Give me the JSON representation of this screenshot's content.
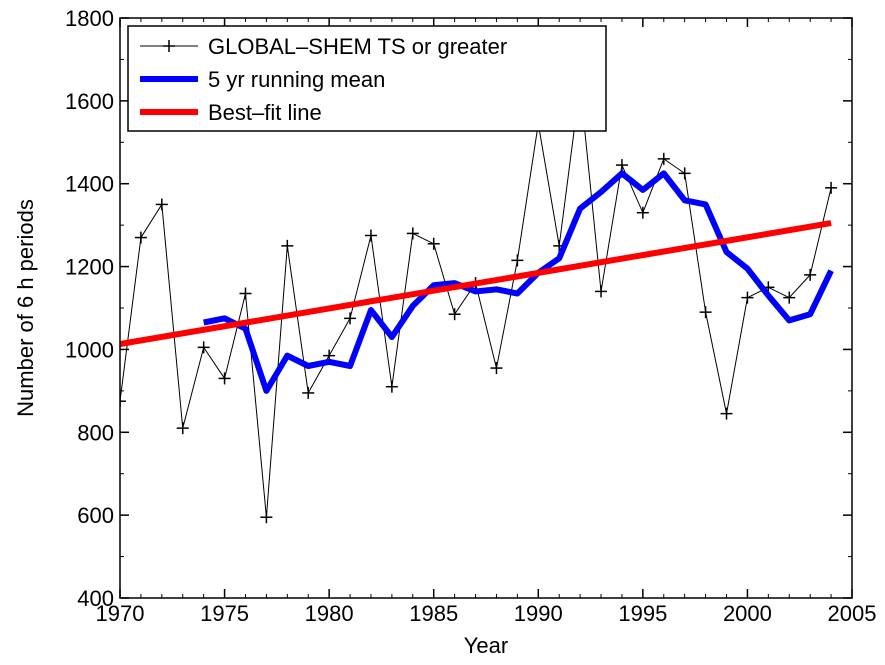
{
  "chart_data": {
    "type": "line",
    "title": "",
    "xlabel": "Year",
    "ylabel": "Number of 6 h periods",
    "xlim": [
      1970,
      2005
    ],
    "ylim": [
      400,
      1800
    ],
    "xticks": [
      1970,
      1975,
      1980,
      1985,
      1990,
      1995,
      2000,
      2005
    ],
    "yticks": [
      400,
      600,
      800,
      1000,
      1200,
      1400,
      1600,
      1800
    ],
    "grid": false,
    "legend_position": "top-left",
    "series": [
      {
        "name": "GLOBAL–SHEM TS or greater",
        "style": "thin-line-plus-markers",
        "color": "#000000",
        "x": [
          1970,
          1971,
          1972,
          1973,
          1974,
          1975,
          1976,
          1977,
          1978,
          1979,
          1980,
          1981,
          1982,
          1983,
          1984,
          1985,
          1986,
          1987,
          1988,
          1989,
          1990,
          1991,
          1992,
          1993,
          1994,
          1995,
          1996,
          1997,
          1998,
          1999,
          2000,
          2001,
          2002,
          2003,
          2004
        ],
        "y": [
          875,
          1270,
          1350,
          810,
          1005,
          930,
          1135,
          595,
          1250,
          895,
          985,
          1075,
          1275,
          910,
          1280,
          1255,
          1085,
          1160,
          955,
          1215,
          1545,
          1250,
          1640,
          1140,
          1445,
          1330,
          1460,
          1425,
          1090,
          845,
          1125,
          1150,
          1125,
          1180,
          1390
        ]
      },
      {
        "name": "5 yr running mean",
        "style": "thick-line",
        "color": "#0000ff",
        "x": [
          1974,
          1975,
          1976,
          1977,
          1978,
          1979,
          1980,
          1981,
          1982,
          1983,
          1984,
          1985,
          1986,
          1987,
          1988,
          1989,
          1990,
          1991,
          1992,
          1993,
          1994,
          1995,
          1996,
          1997,
          1998,
          1999,
          2000,
          2001,
          2002,
          2003,
          2004
        ],
        "y": [
          1065,
          1075,
          1050,
          900,
          985,
          960,
          970,
          960,
          1095,
          1030,
          1105,
          1155,
          1160,
          1140,
          1145,
          1135,
          1185,
          1220,
          1340,
          1380,
          1425,
          1385,
          1425,
          1360,
          1350,
          1235,
          1195,
          1130,
          1070,
          1085,
          1190
        ]
      },
      {
        "name": "Best–fit line",
        "style": "thick-line",
        "color": "#ff0000",
        "x": [
          1970,
          2004
        ],
        "y": [
          1013,
          1305
        ]
      }
    ]
  }
}
